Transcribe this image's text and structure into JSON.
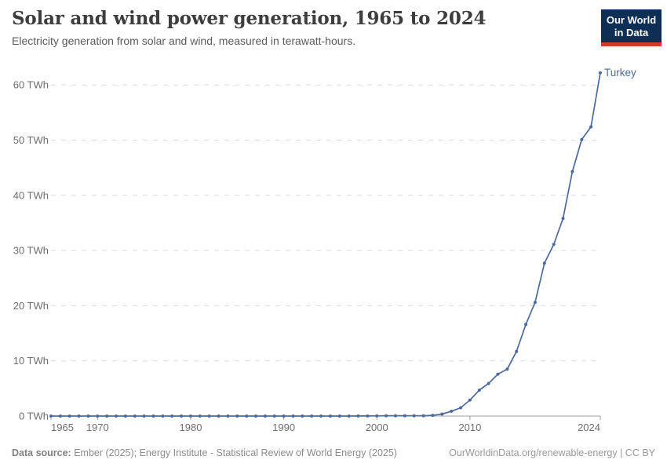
{
  "header": {
    "title": "Solar and wind power generation, 1965 to 2024",
    "subtitle": "Electricity generation from solar and wind, measured in terawatt-hours.",
    "logo": {
      "line1": "Our World",
      "line2": "in Data",
      "bg_color": "#0E2F55",
      "stripe_color": "#D3392C"
    }
  },
  "footer": {
    "datasource_label": "Data source:",
    "datasource_text": " Ember (2025); Energy Institute - Statistical Review of World Energy (2025)",
    "credit": "OurWorldinData.org/renewable-energy | CC BY"
  },
  "chart_data": {
    "type": "line",
    "title": "Solar and wind power generation, 1965 to 2024",
    "subtitle": "Electricity generation from solar and wind, measured in terawatt-hours.",
    "entity_label": "Turkey",
    "xlim": [
      1965,
      2024
    ],
    "ylim": [
      0,
      62.5
    ],
    "x_ticks": [
      1965,
      1970,
      1980,
      1990,
      2000,
      2010,
      2024
    ],
    "y_ticks": [
      0,
      10,
      20,
      30,
      40,
      50,
      60
    ],
    "y_tick_suffix": " TWh",
    "grid": "horizontal-dashed",
    "legend_position": "end-of-line",
    "colors": {
      "line": "#4C6A9C",
      "gridline": "#dcdcdc",
      "axis": "#a1a1a1",
      "tick_text": "#6e6e6e"
    },
    "series": [
      {
        "name": "Turkey",
        "color": "#4C6A9C",
        "x": [
          1965,
          1966,
          1967,
          1968,
          1969,
          1970,
          1971,
          1972,
          1973,
          1974,
          1975,
          1976,
          1977,
          1978,
          1979,
          1980,
          1981,
          1982,
          1983,
          1984,
          1985,
          1986,
          1987,
          1988,
          1989,
          1990,
          1991,
          1992,
          1993,
          1994,
          1995,
          1996,
          1997,
          1998,
          1999,
          2000,
          2001,
          2002,
          2003,
          2004,
          2005,
          2006,
          2007,
          2008,
          2009,
          2010,
          2011,
          2012,
          2013,
          2014,
          2015,
          2016,
          2017,
          2018,
          2019,
          2020,
          2021,
          2022,
          2023,
          2024
        ],
        "y": [
          0,
          0,
          0,
          0,
          0,
          0,
          0,
          0,
          0,
          0,
          0,
          0,
          0,
          0,
          0,
          0,
          0,
          0,
          0,
          0,
          0,
          0,
          0,
          0,
          0,
          0,
          0,
          0,
          0,
          0,
          0,
          0,
          0,
          0.01,
          0.02,
          0.03,
          0.06,
          0.05,
          0.06,
          0.06,
          0.06,
          0.13,
          0.36,
          0.87,
          1.5,
          2.9,
          4.7,
          5.9,
          7.6,
          8.5,
          11.7,
          16.6,
          20.6,
          27.7,
          31.1,
          35.8,
          44.3,
          50.1,
          52.4,
          62.2
        ]
      }
    ]
  }
}
